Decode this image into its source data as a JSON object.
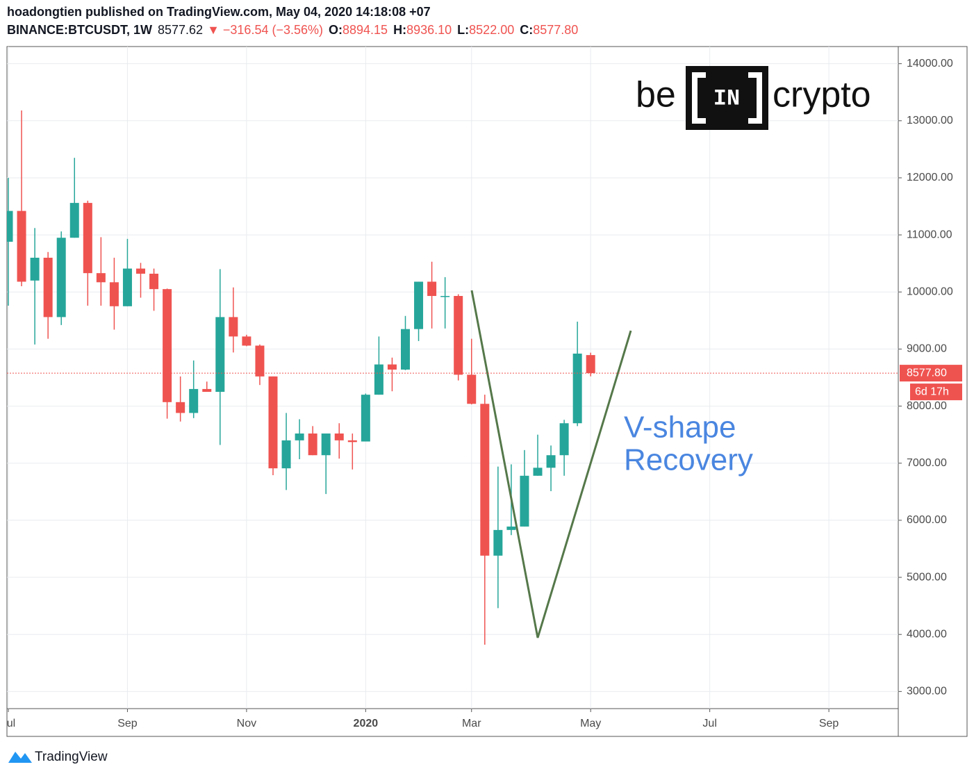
{
  "header": {
    "publisher": "hoadongtien published on TradingView.com, May 04, 2020 14:18:08 +07",
    "symbol": "BINANCE:BTCUSDT, 1W",
    "price": "8577.62",
    "change": "▼ −316.54 (−3.56%)",
    "o_label": "O:",
    "open": "8894.15",
    "h_label": "H:",
    "high": "8936.10",
    "l_label": "L:",
    "low": "8522.00",
    "c_label": "C:",
    "close": "8577.80"
  },
  "watermark": {
    "left": "be",
    "mid": "IN",
    "right": "crypto"
  },
  "footer": {
    "brand": "TradingView"
  },
  "chart_data": {
    "type": "candlestick",
    "categories": [
      "Jul",
      null,
      null,
      null,
      null,
      null,
      null,
      null,
      null,
      "Sep",
      null,
      null,
      null,
      null,
      null,
      null,
      null,
      null,
      "Nov",
      null,
      null,
      null,
      null,
      null,
      null,
      null,
      null,
      "2020",
      null,
      null,
      null,
      null,
      null,
      null,
      null,
      "Mar",
      null,
      null,
      null,
      null,
      null,
      null,
      null,
      null,
      "May",
      null,
      null,
      null,
      null,
      null,
      null,
      null,
      null,
      "Jul",
      null,
      null,
      null,
      null,
      null,
      null,
      null,
      null,
      "Sep",
      null,
      null,
      null,
      null
    ],
    "open": [
      10880,
      11420,
      10200,
      10600,
      9560,
      10950,
      11560,
      10330,
      10170,
      9750,
      10410,
      10320,
      10050,
      8070,
      7880,
      8300,
      8250,
      9560,
      9220,
      9060,
      8520,
      6910,
      7400,
      7520,
      7140,
      7520,
      7400,
      7380,
      8200,
      8730,
      8640,
      9350,
      10180,
      9920,
      9930,
      8550,
      8040,
      5380,
      5830,
      5890,
      6780,
      6920,
      7140,
      7700,
      8894.15,
      null,
      null,
      null,
      null,
      null,
      null,
      null,
      null,
      null,
      null,
      null,
      null,
      null,
      null,
      null,
      null,
      null,
      null,
      null,
      null,
      null,
      null
    ],
    "high": [
      12000,
      13180,
      11120,
      10700,
      11060,
      12350,
      11600,
      10960,
      10600,
      10930,
      10510,
      10410,
      10060,
      8520,
      8800,
      8430,
      10400,
      10080,
      9250,
      9080,
      8520,
      7880,
      7770,
      7650,
      7520,
      7700,
      7520,
      8220,
      9220,
      8850,
      9580,
      10180,
      10530,
      10260,
      9960,
      9180,
      8200,
      6940,
      6980,
      7230,
      7500,
      7310,
      7760,
      9480,
      8936.1,
      null,
      null,
      null,
      null,
      null,
      null,
      null,
      null,
      null,
      null,
      null,
      null,
      null,
      null,
      null,
      null,
      null,
      null,
      null,
      null,
      null,
      null
    ],
    "low": [
      9760,
      10100,
      9080,
      9180,
      9420,
      10950,
      9760,
      9760,
      9340,
      9750,
      9900,
      9670,
      7780,
      7730,
      7790,
      8250,
      7320,
      8940,
      9050,
      8370,
      6790,
      6530,
      7070,
      7140,
      6460,
      7080,
      6890,
      7380,
      8200,
      8260,
      8630,
      9140,
      9360,
      9360,
      8450,
      8030,
      3820,
      4460,
      5740,
      5890,
      6780,
      6510,
      6780,
      7650,
      8522,
      null,
      null,
      null,
      null,
      null,
      null,
      null,
      null,
      null,
      null,
      null,
      null,
      null,
      null,
      null,
      null,
      null,
      null,
      null,
      null,
      null,
      null
    ],
    "close": [
      11420,
      10180,
      10600,
      9560,
      10950,
      11560,
      10330,
      10170,
      9750,
      10410,
      10320,
      10050,
      8070,
      7880,
      8300,
      8250,
      9560,
      9220,
      9060,
      8520,
      6910,
      7400,
      7520,
      7140,
      7520,
      7400,
      7370,
      8200,
      8730,
      8640,
      9350,
      10180,
      9930,
      9930,
      8550,
      8040,
      5380,
      5830,
      5890,
      6780,
      6920,
      7140,
      7700,
      8920,
      8577.8,
      null,
      null,
      null,
      null,
      null,
      null,
      null,
      null,
      null,
      null,
      null,
      null,
      null,
      null,
      null,
      null,
      null,
      null,
      null,
      null,
      null,
      null
    ],
    "up_color": "#26a69a",
    "down_color": "#ef5350",
    "ylim": [
      2700,
      14300
    ],
    "yticks": [
      {
        "value": 3000,
        "label": "3000.00"
      },
      {
        "value": 4000,
        "label": "4000.00"
      },
      {
        "value": 5000,
        "label": "5000.00"
      },
      {
        "value": 6000,
        "label": "6000.00"
      },
      {
        "value": 7000,
        "label": "7000.00"
      },
      {
        "value": 8000,
        "label": "8000.00"
      },
      {
        "value": 9000,
        "label": "9000.00"
      },
      {
        "value": 10000,
        "label": "10000.00"
      },
      {
        "value": 11000,
        "label": "11000.00"
      },
      {
        "value": 12000,
        "label": "12000.00"
      },
      {
        "value": 13000,
        "label": "13000.00"
      },
      {
        "value": 14000,
        "label": "14000.00"
      }
    ],
    "grid": true,
    "last_price": {
      "value": 8577.8,
      "label": "8577.80"
    },
    "countdown": "6d 17h",
    "annotation": [
      "V-shape",
      "Recovery"
    ]
  }
}
